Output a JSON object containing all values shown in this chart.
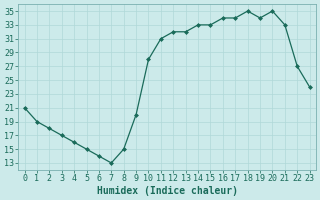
{
  "x": [
    0,
    1,
    2,
    3,
    4,
    5,
    6,
    7,
    8,
    9,
    10,
    11,
    12,
    13,
    14,
    15,
    16,
    17,
    18,
    19,
    20,
    21,
    22,
    23
  ],
  "y": [
    21,
    19,
    18,
    17,
    16,
    15,
    14,
    13,
    15,
    20,
    28,
    31,
    32,
    32,
    33,
    33,
    34,
    34,
    35,
    34,
    35,
    33,
    27,
    24
  ],
  "line_color": "#1a6b5a",
  "marker": "D",
  "marker_size": 2.0,
  "bg_color": "#cceaea",
  "grid_color": "#b0d8d8",
  "xlabel": "Humidex (Indice chaleur)",
  "xlim": [
    -0.5,
    23.5
  ],
  "ylim": [
    12,
    36
  ],
  "yticks": [
    13,
    15,
    17,
    19,
    21,
    23,
    25,
    27,
    29,
    31,
    33,
    35
  ],
  "xticks": [
    0,
    1,
    2,
    3,
    4,
    5,
    6,
    7,
    8,
    9,
    10,
    11,
    12,
    13,
    14,
    15,
    16,
    17,
    18,
    19,
    20,
    21,
    22,
    23
  ],
  "tick_label_color": "#1a6b5a",
  "axis_color": "#7ab0b0",
  "font_size": 6.0,
  "xlabel_font_size": 7.0,
  "lw": 0.9
}
